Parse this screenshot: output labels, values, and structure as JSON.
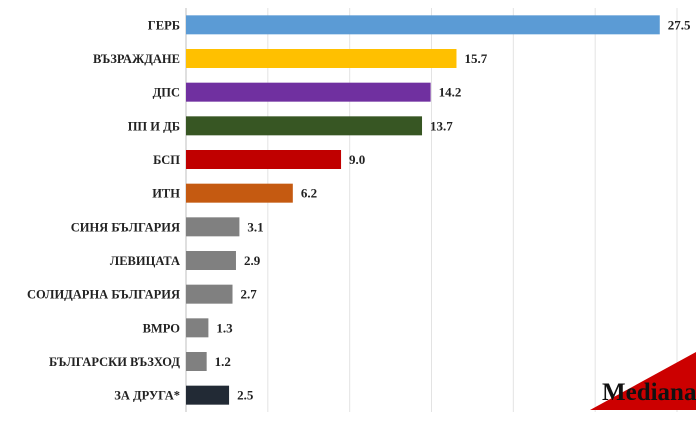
{
  "chart_data": {
    "type": "bar",
    "orientation": "horizontal",
    "categories": [
      "ГЕРБ",
      "ВЪЗРАЖДАНЕ",
      "ДПС",
      "ПП И ДБ",
      "БСП",
      "ИТН",
      "СИНЯ БЪЛГАРИЯ",
      "ЛЕВИЦАТА",
      "СОЛИДАРНА БЪЛГАРИЯ",
      "ВМРО",
      "БЪЛГАРСКИ ВЪЗХОД",
      "ЗА ДРУГА*"
    ],
    "values": [
      27.5,
      15.7,
      14.2,
      13.7,
      9.0,
      6.2,
      3.1,
      2.9,
      2.7,
      1.3,
      1.2,
      2.5
    ],
    "value_labels": [
      "27.5",
      "15.7",
      "14.2",
      "13.7",
      "9.0",
      "6.2",
      "3.1",
      "2.9",
      "2.7",
      "1.3",
      "1.2",
      "2.5"
    ],
    "colors": [
      "#5b9bd5",
      "#ffc000",
      "#7030a0",
      "#375623",
      "#c00000",
      "#c55a11",
      "#808080",
      "#808080",
      "#808080",
      "#808080",
      "#808080",
      "#222a35"
    ],
    "xlim": [
      0,
      28.5
    ],
    "grid": true,
    "legend": "none"
  },
  "logo": {
    "text": "Mediana",
    "accent_color": "#cc0000"
  }
}
